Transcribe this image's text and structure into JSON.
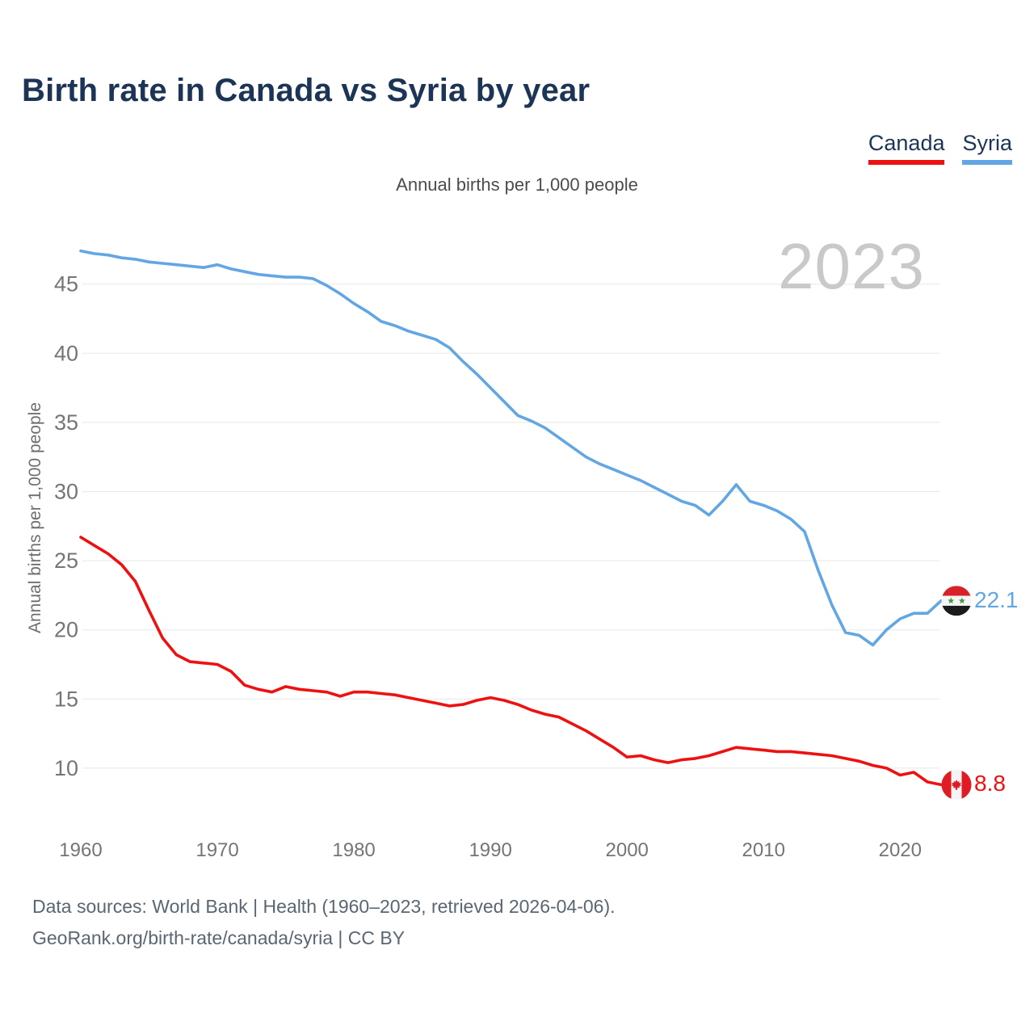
{
  "page": {
    "title": "Birth rate in Canada vs Syria by year",
    "subtitle": "Annual births per 1,000 people",
    "watermark": "2023"
  },
  "legend": {
    "items": [
      {
        "label": "Canada",
        "color": "#ee1111"
      },
      {
        "label": "Syria",
        "color": "#62a6e3"
      }
    ]
  },
  "y_axis": {
    "title": "Annual births per 1,000 people",
    "ticks": [
      "45",
      "40",
      "35",
      "30",
      "25",
      "20",
      "15",
      "10"
    ]
  },
  "x_axis": {
    "ticks": [
      "1960",
      "1970",
      "1980",
      "1990",
      "2000",
      "2010",
      "2020"
    ]
  },
  "end_labels": {
    "canada": {
      "value": "8.8",
      "flag": "canada-flag"
    },
    "syria": {
      "value": "22.1",
      "flag": "syria-flag"
    }
  },
  "footer": {
    "line1": "Data sources: World Bank | Health (1960–2023, retrieved 2026-04-06).",
    "line2": "GeoRank.org/birth-rate/canada/syria | CC BY"
  },
  "chart_data": {
    "type": "line",
    "title": "Birth rate in Canada vs Syria by year",
    "ylabel": "Annual births per 1,000 people",
    "xlim": [
      1960,
      2023
    ],
    "ylim": [
      8,
      48
    ],
    "grid": true,
    "legend_position": "top-right",
    "x": [
      1960,
      1961,
      1962,
      1963,
      1964,
      1965,
      1966,
      1967,
      1968,
      1969,
      1970,
      1971,
      1972,
      1973,
      1974,
      1975,
      1976,
      1977,
      1978,
      1979,
      1980,
      1981,
      1982,
      1983,
      1984,
      1985,
      1986,
      1987,
      1988,
      1989,
      1990,
      1991,
      1992,
      1993,
      1994,
      1995,
      1996,
      1997,
      1998,
      1999,
      2000,
      2001,
      2002,
      2003,
      2004,
      2005,
      2006,
      2007,
      2008,
      2009,
      2010,
      2011,
      2012,
      2013,
      2014,
      2015,
      2016,
      2017,
      2018,
      2019,
      2020,
      2021,
      2022,
      2023
    ],
    "series": [
      {
        "name": "Canada",
        "color": "#ee1111",
        "end_label": "8.8",
        "values": [
          26.7,
          26.1,
          25.5,
          24.7,
          23.5,
          21.4,
          19.4,
          18.2,
          17.7,
          17.6,
          17.5,
          17.0,
          16.0,
          15.7,
          15.5,
          15.9,
          15.7,
          15.6,
          15.5,
          15.2,
          15.5,
          15.5,
          15.4,
          15.3,
          15.1,
          14.9,
          14.7,
          14.5,
          14.6,
          14.9,
          15.1,
          14.9,
          14.6,
          14.2,
          13.9,
          13.7,
          13.2,
          12.7,
          12.1,
          11.5,
          10.8,
          10.9,
          10.6,
          10.4,
          10.6,
          10.7,
          10.9,
          11.2,
          11.5,
          11.4,
          11.3,
          11.2,
          11.2,
          11.1,
          11.0,
          10.9,
          10.7,
          10.5,
          10.2,
          10.0,
          9.5,
          9.7,
          9.0,
          8.8
        ]
      },
      {
        "name": "Syria",
        "color": "#62a6e3",
        "end_label": "22.1",
        "values": [
          47.4,
          47.2,
          47.1,
          46.9,
          46.8,
          46.6,
          46.5,
          46.4,
          46.3,
          46.2,
          46.4,
          46.1,
          45.9,
          45.7,
          45.6,
          45.5,
          45.5,
          45.4,
          44.9,
          44.3,
          43.6,
          43.0,
          42.3,
          42.0,
          41.6,
          41.3,
          41.0,
          40.4,
          39.4,
          38.5,
          37.5,
          36.5,
          35.5,
          35.1,
          34.6,
          33.9,
          33.2,
          32.5,
          32.0,
          31.6,
          31.2,
          30.8,
          30.3,
          29.8,
          29.3,
          29.0,
          28.3,
          29.3,
          30.5,
          29.3,
          29.0,
          28.6,
          28.0,
          27.1,
          24.3,
          21.8,
          19.8,
          19.6,
          18.9,
          20.0,
          20.8,
          21.2,
          21.2,
          22.1
        ]
      }
    ]
  }
}
